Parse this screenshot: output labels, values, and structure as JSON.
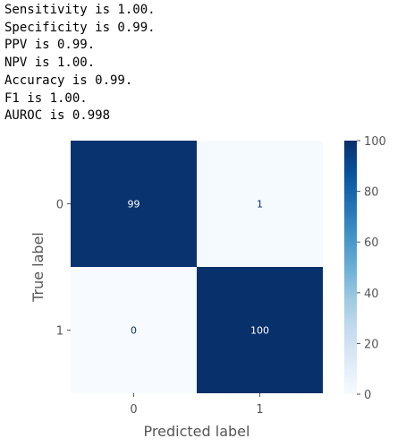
{
  "metrics": [
    "Sensitivity is 1.00.",
    "Specificity is 0.99.",
    "PPV is 0.99.",
    "NPV is 1.00.",
    "Accuracy is 0.99.",
    "F1 is 1.00.",
    "AUROC is 0.998"
  ],
  "chart_data": {
    "type": "heatmap",
    "title": "",
    "xlabel": "Predicted label",
    "ylabel": "True label",
    "x_categories": [
      "0",
      "1"
    ],
    "y_categories": [
      "0",
      "1"
    ],
    "values": [
      [
        99,
        1
      ],
      [
        0,
        100
      ]
    ],
    "colormap": "Blues",
    "colorbar": {
      "min": 0,
      "max": 100,
      "ticks": [
        0,
        20,
        40,
        60,
        80,
        100
      ]
    },
    "colors": {
      "high": "#08306b",
      "low": "#f7fbff",
      "text_on_dark": "#ffffff",
      "text_on_light": "#08306b"
    }
  }
}
